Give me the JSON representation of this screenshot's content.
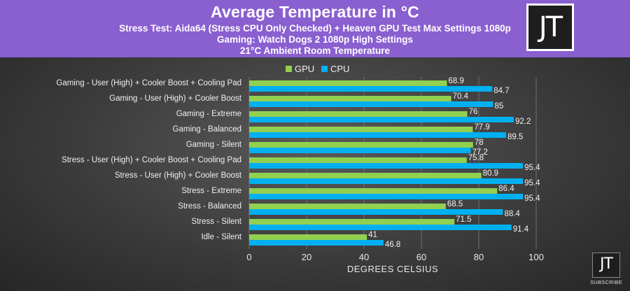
{
  "header": {
    "title": "Average Temperature in °C",
    "subtitle_lines": [
      "Stress Test: Aida64 (Stress CPU Only Checked) + Heaven GPU Test Max Settings 1080p",
      "Gaming: Watch Dogs 2 1080p High Settings",
      "21°C Ambient Room Temperature"
    ]
  },
  "logo": {
    "text": "JT",
    "subscribe_label": "SUBSCRIBE"
  },
  "colors": {
    "header_bg": "#8a5fd0",
    "gpu": "#92d050",
    "cpu": "#00b0f0"
  },
  "chart_data": {
    "type": "bar",
    "orientation": "horizontal",
    "title": "Average Temperature in °C",
    "xlabel": "DEGREES CELSIUS",
    "ylabel": "",
    "xlim": [
      0,
      100
    ],
    "xticks": [
      0,
      20,
      40,
      60,
      80,
      100
    ],
    "grid": true,
    "legend_position": "top",
    "categories": [
      "Gaming - User (High) + Cooler Boost + Cooling Pad",
      "Gaming - User (High) + Cooler Boost",
      "Gaming - Extreme",
      "Gaming - Balanced",
      "Gaming - Silent",
      "Stress - User (High) + Cooler Boost + Cooling Pad",
      "Stress - User (High) + Cooler Boost",
      "Stress - Extreme",
      "Stress - Balanced",
      "Stress - Silent",
      "Idle - Silent"
    ],
    "series": [
      {
        "name": "GPU",
        "color": "#92d050",
        "values": [
          68.9,
          70.4,
          76,
          77.9,
          78,
          75.8,
          80.9,
          86.4,
          68.5,
          71.5,
          41
        ]
      },
      {
        "name": "CPU",
        "color": "#00b0f0",
        "values": [
          84.7,
          85,
          92.2,
          89.5,
          77.2,
          95.4,
          95.4,
          95.4,
          88.4,
          91.4,
          46.8
        ]
      }
    ]
  }
}
